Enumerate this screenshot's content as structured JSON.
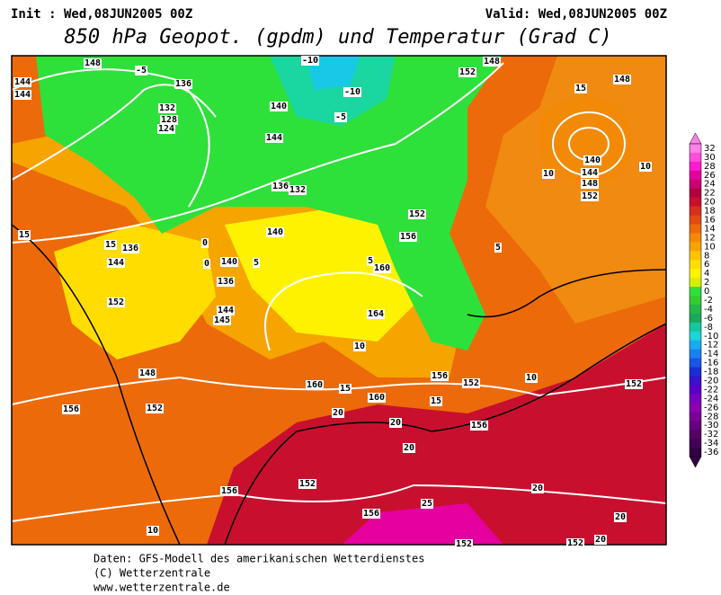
{
  "header": {
    "init": "Init : Wed,08JUN2005 00Z",
    "valid": "Valid: Wed,08JUN2005 00Z",
    "title": "850 hPa Geopot. (gpdm) und Temperatur (Grad C)"
  },
  "colorbar": {
    "labels": [
      "32",
      "30",
      "28",
      "26",
      "24",
      "22",
      "20",
      "18",
      "16",
      "14",
      "12",
      "10",
      "8",
      "6",
      "4",
      "2",
      "0",
      "-2",
      "-4",
      "-6",
      "-8",
      "-10",
      "-12",
      "-14",
      "-16",
      "-18",
      "-20",
      "-22",
      "-24",
      "-26",
      "-28",
      "-30",
      "-32",
      "-34",
      "-36"
    ],
    "colors": [
      "#ff80e6",
      "#ff4dd9",
      "#ff1acc",
      "#e6009e",
      "#cc0073",
      "#b30040",
      "#c8102e",
      "#d7301f",
      "#e34a10",
      "#ec6a0a",
      "#f28a07",
      "#f6a400",
      "#fbc300",
      "#ffdd00",
      "#fff200",
      "#d4f000",
      "#2ee03a",
      "#33cc33",
      "#22b84a",
      "#1aa85c",
      "#12c8a0",
      "#1ad6d6",
      "#19aaf0",
      "#1a80f0",
      "#1a55e6",
      "#1a2ed6",
      "#3a10cc",
      "#5a00cc",
      "#7a00c0",
      "#8c00b0",
      "#7a0099",
      "#660080",
      "#550066",
      "#440055",
      "#330044"
    ]
  },
  "map": {
    "labels": [
      "148",
      "144",
      "144",
      "136",
      "132",
      "128",
      "124",
      "-5",
      "-10",
      "-10",
      "140",
      "144",
      "136",
      "132",
      "140",
      "-5",
      "152",
      "148",
      "15",
      "148",
      "140",
      "144",
      "148",
      "152",
      "10",
      "10",
      "15",
      "15",
      "136",
      "140",
      "144",
      "152",
      "136",
      "144",
      "145",
      "160",
      "156",
      "152",
      "5",
      "0",
      "164",
      "10",
      "156",
      "152",
      "148",
      "152",
      "156",
      "160",
      "15",
      "160",
      "20",
      "15",
      "20",
      "156",
      "152",
      "156",
      "10",
      "20",
      "25",
      "156",
      "20",
      "20",
      "152",
      "152",
      "152",
      "20",
      "5",
      "10",
      "0",
      "5"
    ]
  },
  "footer": {
    "line1": "Daten: GFS-Modell des amerikanischen Wetterdienstes",
    "line2": "(C) Wetterzentrale",
    "line3": "www.wetterzentrale.de"
  }
}
